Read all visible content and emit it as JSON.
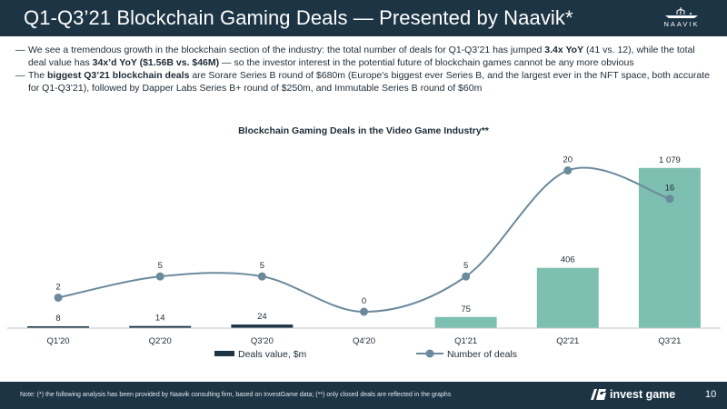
{
  "slide": {
    "title": "Q1-Q3’21 Blockchain Gaming Deals — Presented by Naavik*",
    "logo_text": "NAAVIK",
    "bullets": [
      {
        "p1": "We see a tremendous growth in the blockchain section of the industry: the total number of deals for Q1-Q3’21 has jumped ",
        "b1": "3.4x YoY",
        "p2": " (41 vs. 12), while the total deal value has ",
        "b2": "34x’d YoY ($1.56B vs. $46M)",
        "p3": " — so the investor interest in the potential future of blockchain games cannot be any more obvious"
      },
      {
        "p1": "The ",
        "b1": "biggest Q3’21 blockchain deals",
        "p2": " are Sorare Series B round of $680m (Europe's biggest ever Series B, and the largest ever in the NFT space, both accurate for Q1-Q3’21), followed by Dapper Labs Series B+ round of $250m, and Immutable Series B round of $60m"
      }
    ]
  },
  "chart_data": {
    "type": "bar",
    "title": "Blockchain Gaming Deals in the Video Game Industry**",
    "categories": [
      "Q1'20",
      "Q2'20",
      "Q3'20",
      "Q4'20",
      "Q1'21",
      "Q2'21",
      "Q3'21"
    ],
    "series": [
      {
        "name": "Deals value, $m",
        "kind": "bar",
        "values": [
          8,
          14,
          24,
          0,
          75,
          406,
          1079
        ],
        "labels": [
          "8",
          "14",
          "24",
          "",
          "75",
          "406",
          "1 079"
        ],
        "colors": [
          "#1d3445",
          "#1d3445",
          "#1d3445",
          "#1d3445",
          "#7dbfb0",
          "#7dbfb0",
          "#7dbfb0"
        ]
      },
      {
        "name": "Number of deals",
        "kind": "line",
        "values": [
          2,
          5,
          5,
          0,
          5,
          20,
          16
        ],
        "labels": [
          "2",
          "5",
          "5",
          "0",
          "5",
          "20",
          "16"
        ],
        "color": "#6b8a9c"
      }
    ],
    "bar_ylim": [
      0,
      1200
    ],
    "line_ylim": [
      0,
      22
    ],
    "xlabel": "",
    "ylabel": "",
    "legend_position": "bottom"
  },
  "footer": {
    "note_label": "Note",
    "note_text": ": (*) the following analysis has been provided by Naavik consulting firm, based on InvestGame data; (**) only closed deals are reflected in the graphs",
    "brand": "invest game",
    "page": "10"
  }
}
